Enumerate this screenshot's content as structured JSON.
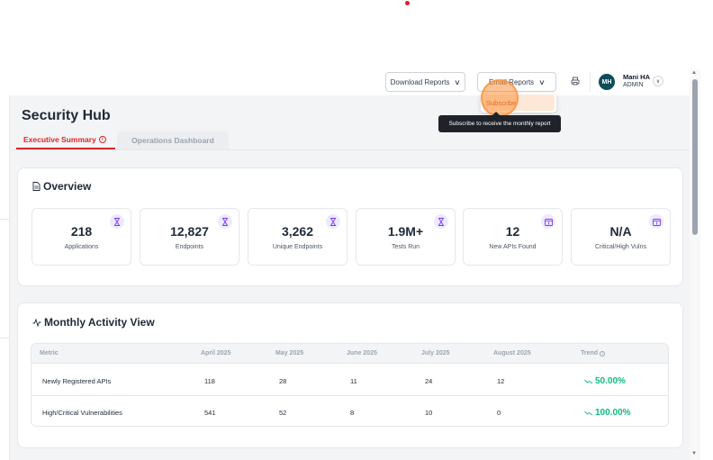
{
  "header": {
    "download_reports": "Download Reports",
    "email_reports": "Email Reports",
    "user": {
      "initials": "MH",
      "name": "Mani HA",
      "role": "ADMIN"
    }
  },
  "email_dropdown": {
    "items": [
      {
        "label": "Subscribe"
      }
    ],
    "tooltip": "Subscribe to receive the monthly report"
  },
  "page": {
    "title": "Security Hub",
    "tabs": [
      {
        "label": "Executive Summary",
        "active": true
      },
      {
        "label": "Operations Dashboard",
        "active": false
      }
    ]
  },
  "overview": {
    "title": "Overview",
    "stats": [
      {
        "value": "218",
        "label": "Applications",
        "icon": "hourglass-icon"
      },
      {
        "value": "12,827",
        "label": "Endpoints",
        "icon": "hourglass-icon"
      },
      {
        "value": "3,262",
        "label": "Unique Endpoints",
        "icon": "hourglass-icon"
      },
      {
        "value": "1.9M+",
        "label": "Tests Run",
        "icon": "hourglass-icon"
      },
      {
        "value": "12",
        "label": "New APIs Found",
        "icon": "calendar-icon"
      },
      {
        "value": "N/A",
        "label": "Critical/High Vulns",
        "icon": "calendar-icon"
      }
    ]
  },
  "monthly": {
    "title": "Monthly Activity View",
    "columns": [
      "Metric",
      "April 2025",
      "May 2025",
      "June 2025",
      "July 2025",
      "August 2025",
      "Trend"
    ],
    "rows": [
      {
        "metric": "Newly Registered APIs",
        "values": [
          "118",
          "28",
          "11",
          "24",
          "12"
        ],
        "trend": "50.00%"
      },
      {
        "metric": "High/Critical Vulnerabilities",
        "values": [
          "541",
          "52",
          "8",
          "10",
          "0"
        ],
        "trend": "100.00%"
      }
    ]
  },
  "colors": {
    "accent": "#dc2626",
    "trend_positive": "#10b981",
    "avatar": "#0f4c5c",
    "highlight": "#fb923c"
  }
}
